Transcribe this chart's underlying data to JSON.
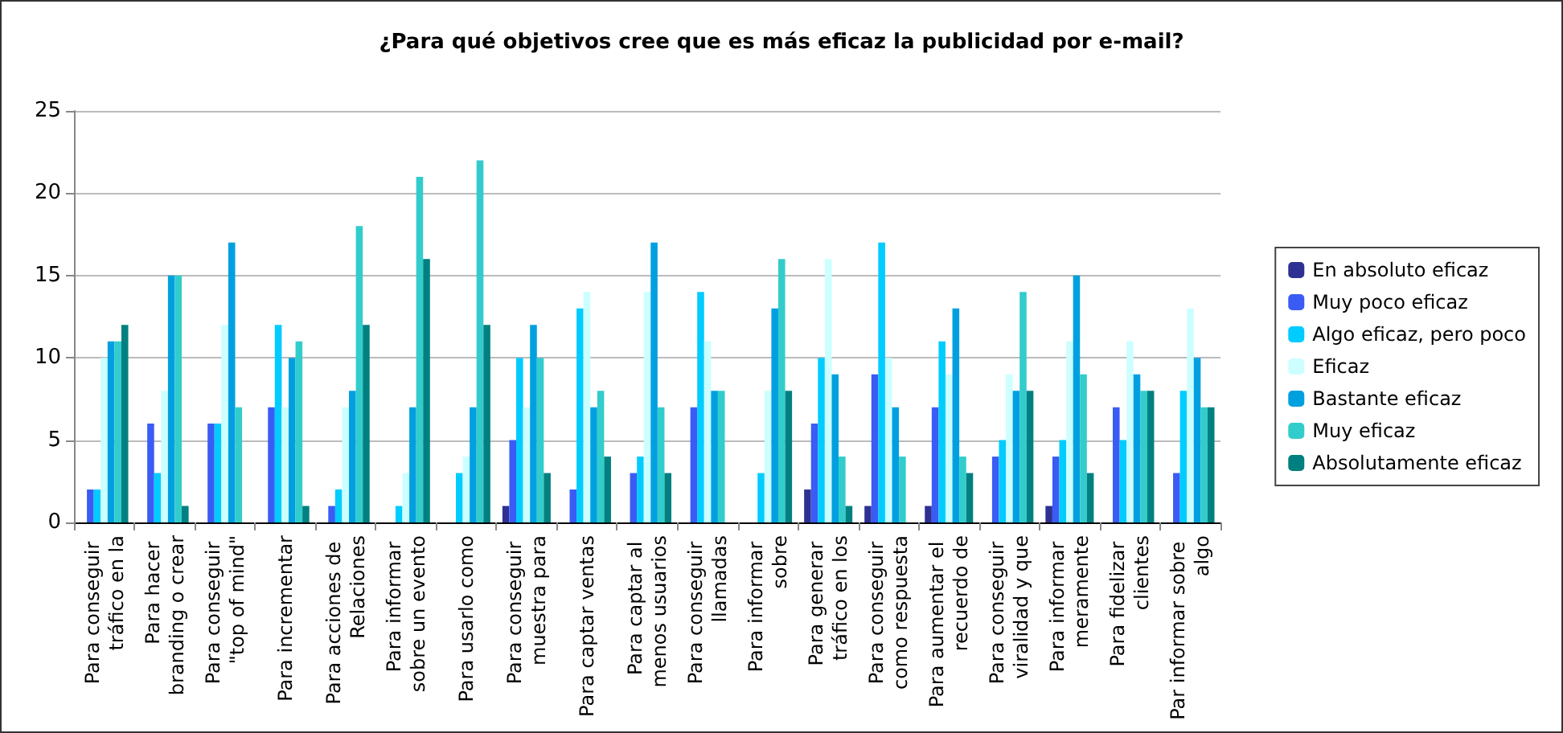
{
  "chart_data": {
    "type": "bar",
    "title": "¿Para qué objetivos cree que es más eficaz la publicidad por e-mail?",
    "categories": [
      "Para conseguir tráfico en la",
      "Para hacer branding o crear",
      "Para conseguir \"top of mind\"",
      "Para incrementar",
      "Para acciones de Relaciones",
      "Para informar sobre un evento",
      "Para usarlo como",
      "Para conseguir muestra para",
      "Para captar ventas",
      "Para captar al menos usuarios",
      "Para conseguir llamadas",
      "Para informar sobre",
      "Para generar tráfico en los",
      "Para conseguir como respuesta",
      "Para aumentar el recuerdo de",
      "Para conseguir viralidad y que",
      "Para informar meramente",
      "Para fidelizar clientes",
      "Par informar sobre algo"
    ],
    "series": [
      {
        "name": "En absoluto eficaz",
        "color": "#2e3192",
        "values": [
          0,
          0,
          0,
          0,
          0,
          0,
          0,
          1,
          0,
          0,
          0,
          0,
          2,
          1,
          1,
          0,
          1,
          0,
          0
        ]
      },
      {
        "name": "Muy poco eficaz",
        "color": "#3a5cf5",
        "values": [
          2,
          6,
          6,
          7,
          1,
          0,
          0,
          5,
          2,
          3,
          7,
          0,
          6,
          9,
          7,
          4,
          4,
          7,
          3
        ]
      },
      {
        "name": "Algo eficaz, pero poco",
        "color": "#00ccff",
        "values": [
          2,
          3,
          6,
          12,
          2,
          1,
          3,
          10,
          13,
          4,
          14,
          3,
          10,
          17,
          11,
          5,
          5,
          5,
          8
        ]
      },
      {
        "name": "Eficaz",
        "color": "#ccffff",
        "values": [
          10,
          8,
          12,
          7,
          7,
          3,
          4,
          7,
          14,
          14,
          11,
          8,
          16,
          10,
          9,
          9,
          11,
          11,
          13
        ]
      },
      {
        "name": "Bastante eficaz",
        "color": "#00a0e0",
        "values": [
          11,
          15,
          17,
          10,
          8,
          7,
          7,
          12,
          7,
          17,
          8,
          13,
          9,
          7,
          13,
          8,
          15,
          9,
          10
        ]
      },
      {
        "name": "Muy eficaz",
        "color": "#33cccc",
        "values": [
          11,
          15,
          7,
          11,
          18,
          21,
          22,
          10,
          8,
          7,
          8,
          16,
          4,
          4,
          4,
          14,
          9,
          8,
          7
        ]
      },
      {
        "name": "Absolutamente eficaz",
        "color": "#008080",
        "values": [
          12,
          1,
          0,
          1,
          12,
          16,
          12,
          3,
          4,
          3,
          0,
          8,
          1,
          0,
          3,
          8,
          3,
          8,
          7
        ]
      }
    ],
    "ylim": [
      0,
      25
    ],
    "yticks": [
      0,
      5,
      10,
      15,
      20,
      25
    ],
    "grid": "y",
    "legend": "right"
  }
}
